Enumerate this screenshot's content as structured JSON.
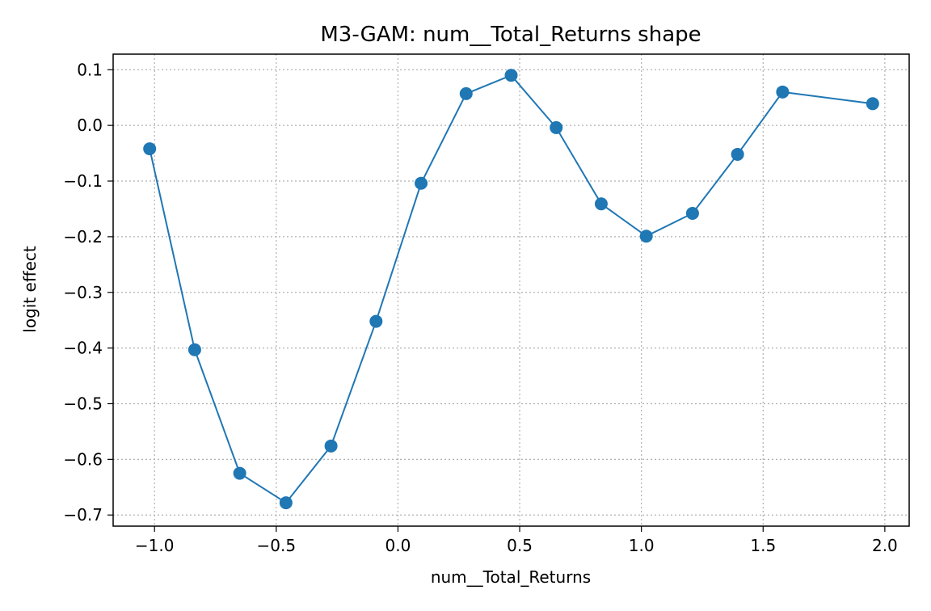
{
  "chart_data": {
    "type": "line",
    "title": "M3-GAM: num__Total_Returns shape",
    "xlabel": "num__Total_Returns",
    "ylabel": "logit effect",
    "xlim": [
      -1.17,
      2.1
    ],
    "ylim": [
      -0.72,
      0.128
    ],
    "xticks": [
      {
        "value": -1.0,
        "label": "−1.0"
      },
      {
        "value": -0.5,
        "label": "−0.5"
      },
      {
        "value": 0.0,
        "label": "0.0"
      },
      {
        "value": 0.5,
        "label": "0.5"
      },
      {
        "value": 1.0,
        "label": "1.0"
      },
      {
        "value": 1.5,
        "label": "1.5"
      },
      {
        "value": 2.0,
        "label": "2.0"
      }
    ],
    "yticks": [
      {
        "value": 0.1,
        "label": "0.1"
      },
      {
        "value": 0.0,
        "label": "0.0"
      },
      {
        "value": -0.1,
        "label": "−0.1"
      },
      {
        "value": -0.2,
        "label": "−0.2"
      },
      {
        "value": -0.3,
        "label": "−0.3"
      },
      {
        "value": -0.4,
        "label": "−0.4"
      },
      {
        "value": -0.5,
        "label": "−0.5"
      },
      {
        "value": -0.6,
        "label": "−0.6"
      },
      {
        "value": -0.7,
        "label": "−0.7"
      }
    ],
    "grid": true,
    "series": [
      {
        "color": "#1f77b4",
        "marker": "circle",
        "x": [
          -1.02,
          -0.835,
          -0.65,
          -0.46,
          -0.275,
          -0.09,
          0.095,
          0.28,
          0.465,
          0.65,
          0.835,
          1.02,
          1.21,
          1.395,
          1.58,
          1.95
        ],
        "y": [
          -0.042,
          -0.403,
          -0.625,
          -0.678,
          -0.576,
          -0.352,
          -0.104,
          0.057,
          0.09,
          -0.004,
          -0.141,
          -0.199,
          -0.158,
          -0.052,
          0.06,
          0.039
        ]
      }
    ]
  }
}
